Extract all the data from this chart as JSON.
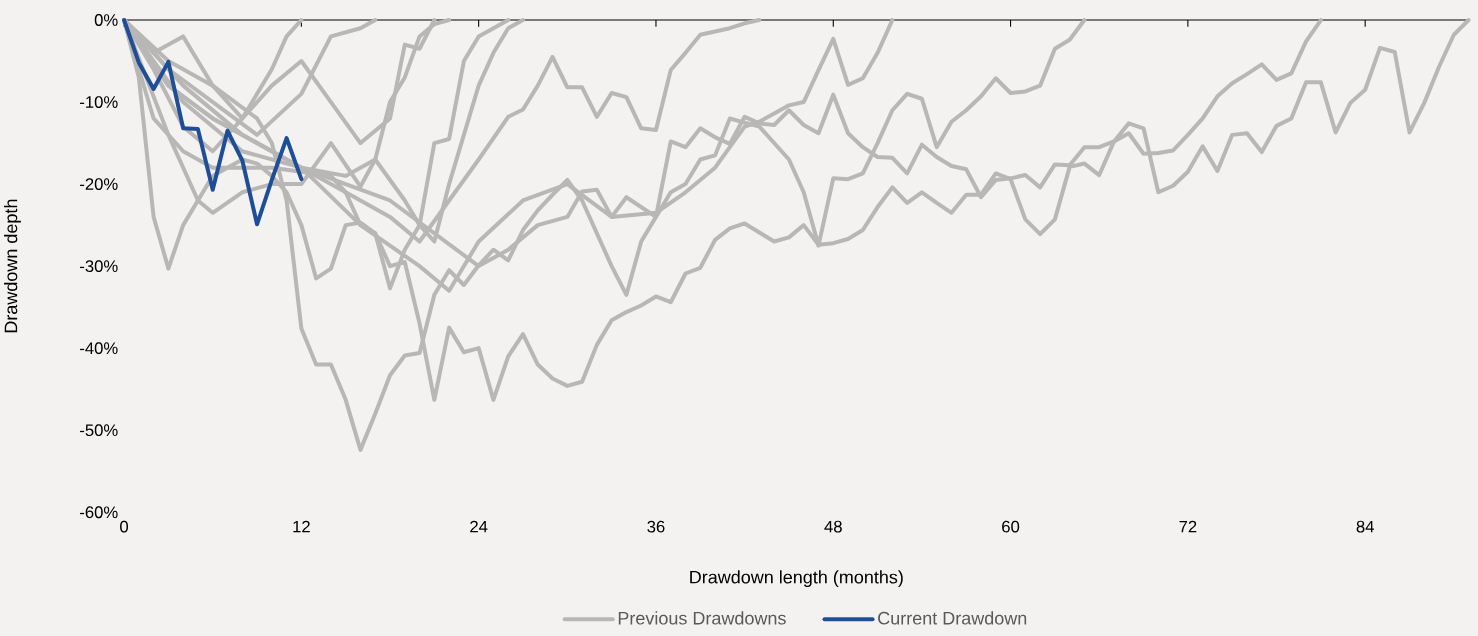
{
  "chart_data": {
    "type": "line",
    "xlabel": "Drawdown length (months)",
    "ylabel": "Drawdown depth",
    "legend": "bottom",
    "xlim": [
      0,
      91
    ],
    "xticks": [
      0,
      12,
      24,
      36,
      48,
      60,
      72,
      84
    ],
    "ylim": [
      -60,
      0
    ],
    "yticks": [
      {
        "value": -60,
        "label": "-60%"
      },
      {
        "value": -50,
        "label": "-50%"
      },
      {
        "value": -40,
        "label": "-40%"
      },
      {
        "value": -30,
        "label": "-30%"
      },
      {
        "value": -20,
        "label": "-20%"
      },
      {
        "value": -10,
        "label": "-10%"
      },
      {
        "value": 0,
        "label": "0%"
      }
    ],
    "series": [
      {
        "name": "Previous Drawdowns",
        "color": "#b8b7b5",
        "x": [
          0,
          2,
          4,
          6,
          8,
          10,
          12,
          14,
          15,
          16,
          17,
          18,
          19,
          20,
          21,
          22,
          23,
          24,
          25,
          26,
          27,
          28,
          29,
          30,
          31,
          32,
          33,
          34,
          35,
          36,
          37,
          38,
          39,
          40,
          41,
          42,
          43,
          44,
          45,
          46,
          47,
          48,
          49,
          50,
          51,
          52,
          53,
          54,
          55,
          56,
          57,
          58,
          59,
          60,
          61,
          62,
          63,
          64,
          65,
          66,
          67,
          68,
          69,
          70,
          71,
          72,
          73,
          74,
          75,
          76,
          77,
          78,
          79,
          80,
          81,
          82,
          83,
          84,
          85,
          86,
          87,
          88,
          89,
          90,
          91
        ],
        "values": [
          0,
          -12,
          -16,
          -18,
          -18,
          -18,
          -18.5,
          -19,
          -21,
          -25,
          -26,
          -30,
          -29.5,
          -37,
          -46.3,
          -37.5,
          -40.5,
          -40,
          -46.3,
          -41,
          -38.3,
          -42,
          -43.7,
          -44.6,
          -44.1,
          -39.6,
          -36.6,
          -35.6,
          -34.8,
          -33.7,
          -34.4,
          -30.9,
          -30.2,
          -26.8,
          -25.4,
          -24.8,
          -25.9,
          -27,
          -26.5,
          -25,
          -27.4,
          -27.2,
          -26.7,
          -25.6,
          -22.8,
          -20.4,
          -22.3,
          -21,
          -22.3,
          -23.5,
          -21.3,
          -21.3,
          -18.7,
          -19.4,
          -24.3,
          -26.1,
          -24.3,
          -17.9,
          -17.5,
          -18.9,
          -14.8,
          -12.6,
          -13.2,
          -21,
          -20.2,
          -18.5,
          -15.4,
          -18.4,
          -14,
          -13.8,
          -16.1,
          -12.9,
          -12,
          -7.6,
          -7.6,
          -13.7,
          -10.1,
          -8.5,
          -3.4,
          -3.9,
          -13.7,
          -10.1,
          -5.7,
          -1.8,
          0
        ]
      },
      {
        "color": "#b8b7b5",
        "x": [
          0,
          3,
          6,
          9,
          12,
          15,
          18,
          21,
          24,
          26,
          28,
          30,
          31,
          32,
          33,
          34,
          35,
          36,
          37,
          38,
          39,
          40,
          41,
          42,
          43,
          44,
          45,
          46,
          47,
          48,
          49,
          50,
          51,
          52,
          53,
          54,
          55,
          56,
          57,
          58,
          59,
          60,
          61,
          62,
          63,
          64,
          65,
          66,
          67,
          68,
          69,
          70,
          71,
          72,
          73,
          74,
          75,
          76,
          77,
          78,
          79,
          80,
          81
        ],
        "values": [
          0,
          -8,
          -12,
          -15,
          -18,
          -20,
          -22,
          -26,
          -30,
          -28,
          -25,
          -24,
          -20.9,
          -20.7,
          -24,
          -21.6,
          -22.8,
          -24,
          -14.8,
          -15.5,
          -13.2,
          -14.3,
          -15.1,
          -11.8,
          -12.6,
          -12.8,
          -11,
          -12.8,
          -13.8,
          -9.1,
          -13.8,
          -15.5,
          -16.7,
          -16.8,
          -18.7,
          -15.2,
          -16.7,
          -17.8,
          -18.2,
          -21.6,
          -19.5,
          -19.3,
          -18.9,
          -20.4,
          -17.6,
          -17.7,
          -15.5,
          -15.5,
          -14.8,
          -13.8,
          -16.3,
          -16.2,
          -15.9,
          -14,
          -12,
          -9.3,
          -7.7,
          -6.6,
          -5.4,
          -7.3,
          -6.5,
          -2.6,
          0
        ]
      },
      {
        "color": "#b8b7b5",
        "x": [
          0,
          4,
          8,
          12,
          16,
          20,
          22,
          24,
          27,
          30,
          33,
          36,
          38,
          40,
          42,
          43,
          44,
          45,
          46,
          47,
          48,
          49,
          50,
          51,
          52
        ],
        "values": [
          0,
          -8,
          -14,
          -18,
          -25,
          -30,
          -33,
          -27,
          -22,
          -20,
          -24,
          -23.5,
          -21,
          -18,
          -13,
          -12.4,
          -11.4,
          -10.4,
          -10,
          -6.1,
          -2.3,
          -7.9,
          -7.1,
          -4,
          0
        ]
      },
      {
        "color": "#b8b7b5",
        "x": [
          0,
          3,
          6,
          9,
          12,
          15,
          18,
          20,
          22,
          24,
          26,
          27,
          28,
          29,
          30,
          31,
          32,
          33,
          34,
          35,
          36,
          37,
          38,
          39,
          41,
          42,
          43
        ],
        "values": [
          0,
          -8,
          -12,
          -15,
          -18,
          -21,
          -24,
          -27,
          -22,
          -17,
          -11.8,
          -10.9,
          -8,
          -4.5,
          -8.2,
          -8.2,
          -11.8,
          -8.9,
          -9.4,
          -13.2,
          -13.4,
          -6.1,
          -4,
          -1.8,
          -1,
          -0.4,
          0
        ]
      },
      {
        "color": "#b8b7b5",
        "x": [
          0,
          3,
          6,
          9,
          10,
          11,
          12,
          13,
          14,
          15,
          16,
          17,
          18,
          19,
          20,
          21,
          22,
          23,
          24,
          25,
          26,
          27,
          28,
          29,
          30,
          31,
          32,
          33,
          34,
          35,
          36,
          37,
          38,
          39,
          40,
          41,
          42,
          43,
          44,
          45,
          46,
          47,
          48,
          49,
          50,
          51,
          52,
          53,
          54,
          55,
          56,
          57,
          58,
          59,
          60,
          61,
          62,
          63,
          64,
          65
        ],
        "values": [
          0,
          -5,
          -8,
          -12,
          -15,
          -22,
          -37.6,
          -42,
          -42,
          -46.3,
          -52.4,
          -48,
          -43.3,
          -40.9,
          -40.6,
          -33.5,
          -30.5,
          -32.3,
          -29.9,
          -28,
          -29.3,
          -25.6,
          -23.2,
          -21.3,
          -19.5,
          -22,
          -26,
          -30,
          -33.5,
          -27,
          -24,
          -21,
          -20,
          -17,
          -16.5,
          -12,
          -12.5,
          -13,
          -15,
          -17,
          -21,
          -27.5,
          -19.3,
          -19.4,
          -18.7,
          -15,
          -11,
          -9,
          -9.6,
          -15.5,
          -12.4,
          -11,
          -9.3,
          -7.1,
          -8.9,
          -8.7,
          -8,
          -3.5,
          -2.4,
          0
        ]
      },
      {
        "color": "#b8b7b5",
        "x": [
          0,
          1,
          2,
          3,
          4,
          5,
          6,
          7,
          8,
          9,
          10,
          11,
          12,
          13,
          14,
          15,
          16,
          17,
          18,
          19,
          20,
          21,
          22,
          23,
          24,
          25,
          26
        ],
        "values": [
          0,
          -7,
          -24,
          -30.3,
          -25,
          -22,
          -19,
          -18,
          -17,
          -17.5,
          -19,
          -21,
          -25,
          -31.5,
          -30.3,
          -25,
          -24.7,
          -26,
          -32.7,
          -28,
          -25,
          -15,
          -14.5,
          -5,
          -2,
          -1,
          0
        ]
      },
      {
        "color": "#b8b7b5",
        "x": [
          0,
          2,
          4,
          6,
          8,
          10,
          11,
          12
        ],
        "values": [
          0,
          -4,
          -2,
          -8,
          -12,
          -6,
          -2,
          0
        ]
      },
      {
        "color": "#b8b7b5",
        "x": [
          0,
          3,
          6,
          9,
          12,
          14,
          16,
          17
        ],
        "values": [
          0,
          -6,
          -10,
          -14,
          -9,
          -2,
          -1,
          0
        ]
      },
      {
        "color": "#b8b7b5",
        "x": [
          0,
          2,
          4,
          6,
          8,
          10,
          12,
          14,
          16,
          18,
          19,
          20,
          21
        ],
        "values": [
          0,
          -6,
          -13,
          -16,
          -12,
          -8,
          -5,
          -10,
          -15,
          -12,
          -3,
          -3.5,
          0
        ]
      },
      {
        "color": "#b8b7b5",
        "x": [
          0,
          3,
          5,
          6,
          8,
          10,
          12,
          14,
          16,
          17,
          18,
          19,
          20,
          21,
          22
        ],
        "values": [
          0,
          -14,
          -22,
          -23.5,
          -21,
          -20,
          -20,
          -15,
          -20.3,
          -17,
          -10,
          -7,
          -2,
          -0.5,
          0
        ]
      },
      {
        "color": "#b8b7b5",
        "x": [
          0,
          4,
          8,
          12,
          15,
          17,
          19,
          20,
          21,
          22,
          23,
          24,
          25,
          26,
          27
        ],
        "values": [
          0,
          -10,
          -16,
          -18,
          -19,
          -17,
          -22,
          -25,
          -27,
          -20,
          -14,
          -8,
          -4,
          -1,
          0
        ]
      },
      {
        "name": "Current Drawdown",
        "color": "#1f4e99",
        "x": [
          0,
          1,
          2,
          3,
          4,
          5,
          6,
          7,
          8,
          9,
          10,
          11,
          12
        ],
        "values": [
          0,
          -5.2,
          -8.4,
          -5.1,
          -13.2,
          -13.3,
          -20.7,
          -13.5,
          -17.1,
          -24.9,
          -19.5,
          -14.4,
          -19.4
        ]
      }
    ]
  }
}
